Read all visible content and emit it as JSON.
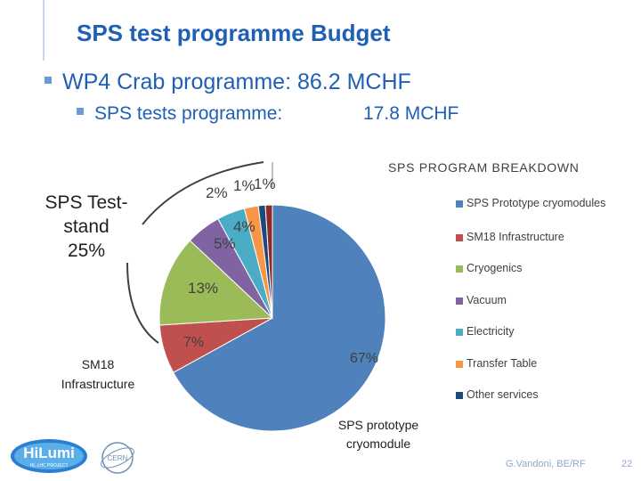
{
  "slide": {
    "title": "SPS test programme Budget",
    "bullet1": "WP4 Crab programme: 86.2 MCHF",
    "bullet2_label": "SPS tests programme:",
    "bullet2_value": "17.8 MCHF",
    "callout_sps_test": [
      "SPS Test-",
      "stand",
      "25%"
    ],
    "callout_sm18": [
      "SM18",
      "Infrastructure"
    ],
    "callout_prototype": [
      "SPS prototype",
      "cryomodule"
    ],
    "footer_author": "G.Vandoni, BE/RF",
    "page_number": "22",
    "logo_text": "HiLumi",
    "logo_subtext": "HL-LHC PROJECT",
    "cern_text": "CERN"
  },
  "colors": {
    "title": "#1f5fb5",
    "accent": "#6b9bd2"
  },
  "chart_data": {
    "type": "pie",
    "title": "SPS PROGRAM BREAKDOWN",
    "legend_position": "right",
    "series": [
      {
        "name": "SPS Prototype cryomodules",
        "value": 67,
        "label": "67%",
        "color": "#4f81bd"
      },
      {
        "name": "SM18 Infrastructure",
        "value": 7,
        "label": "7%",
        "color": "#c0504d"
      },
      {
        "name": "Cryogenics",
        "value": 13,
        "label": "13%",
        "color": "#9bbb59"
      },
      {
        "name": "Vacuum",
        "value": 5,
        "label": "5%",
        "color": "#8064a2"
      },
      {
        "name": "Electricity",
        "value": 4,
        "label": "4%",
        "color": "#4bacc6"
      },
      {
        "name": "Transfer Table",
        "value": 2,
        "label": "2%",
        "color": "#f79646"
      },
      {
        "name": "Other services",
        "value": 1,
        "label": "1%",
        "color": "#1f497d"
      },
      {
        "name": "",
        "value": 1,
        "label": "1%",
        "color": "#8c2b28"
      }
    ],
    "legend": [
      "SPS Prototype cryomodules",
      "SM18 Infrastructure",
      "Cryogenics",
      "Vacuum",
      "Electricity",
      "Transfer Table",
      "Other services"
    ],
    "legend_colors": [
      "#4f81bd",
      "#c0504d",
      "#9bbb59",
      "#8064a2",
      "#4bacc6",
      "#f79646",
      "#1f497d"
    ]
  }
}
